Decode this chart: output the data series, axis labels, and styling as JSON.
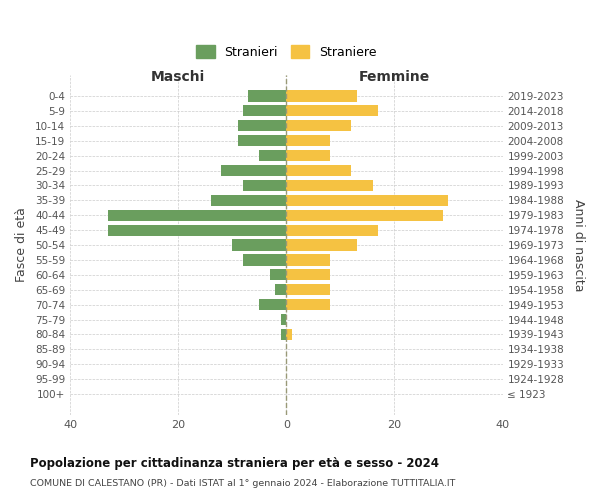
{
  "age_groups": [
    "0-4",
    "5-9",
    "10-14",
    "15-19",
    "20-24",
    "25-29",
    "30-34",
    "35-39",
    "40-44",
    "45-49",
    "50-54",
    "55-59",
    "60-64",
    "65-69",
    "70-74",
    "75-79",
    "80-84",
    "85-89",
    "90-94",
    "95-99",
    "100+"
  ],
  "birth_years": [
    "2019-2023",
    "2014-2018",
    "2009-2013",
    "2004-2008",
    "1999-2003",
    "1994-1998",
    "1989-1993",
    "1984-1988",
    "1979-1983",
    "1974-1978",
    "1969-1973",
    "1964-1968",
    "1959-1963",
    "1954-1958",
    "1949-1953",
    "1944-1948",
    "1939-1943",
    "1934-1938",
    "1929-1933",
    "1924-1928",
    "≤ 1923"
  ],
  "males": [
    7,
    8,
    9,
    9,
    5,
    12,
    8,
    14,
    33,
    33,
    10,
    8,
    3,
    2,
    5,
    1,
    1,
    0,
    0,
    0,
    0
  ],
  "females": [
    13,
    17,
    12,
    8,
    8,
    12,
    16,
    30,
    29,
    17,
    13,
    8,
    8,
    8,
    8,
    0,
    1,
    0,
    0,
    0,
    0
  ],
  "male_color": "#6a9e5e",
  "female_color": "#f5c242",
  "title": "Popolazione per cittadinanza straniera per età e sesso - 2024",
  "subtitle": "COMUNE DI CALESTANO (PR) - Dati ISTAT al 1° gennaio 2024 - Elaborazione TUTTITALIA.IT",
  "ylabel_left": "Fasce di età",
  "ylabel_right": "Anni di nascita",
  "xlabel_left": "Maschi",
  "xlabel_right": "Femmine",
  "legend_stranieri": "Stranieri",
  "legend_straniere": "Straniere",
  "xlim": 40,
  "background_color": "#ffffff",
  "grid_color": "#cccccc"
}
